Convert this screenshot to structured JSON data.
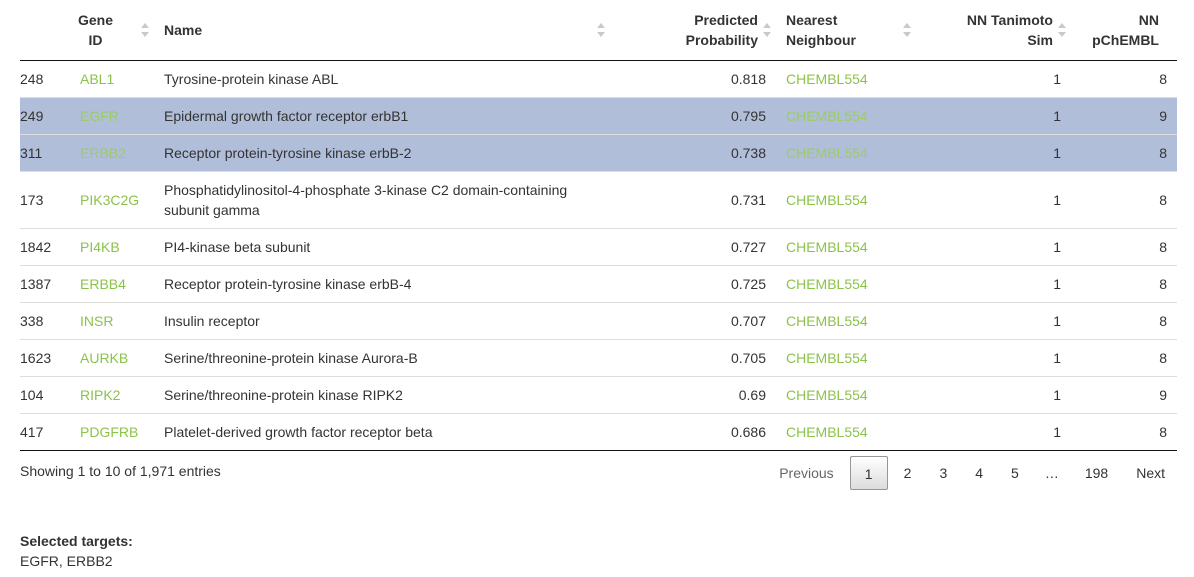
{
  "table": {
    "headers": {
      "index": "",
      "gene_id": [
        "Gene",
        "ID"
      ],
      "name": "Name",
      "predicted_probability": [
        "Predicted",
        "Probability"
      ],
      "nearest_neighbour": [
        "Nearest",
        "Neighbour"
      ],
      "nn_tanimoto_sim": [
        "NN Tanimoto",
        "Sim"
      ],
      "nn_pchembl": [
        "NN",
        "pChEMBL"
      ]
    },
    "rows": [
      {
        "index": "248",
        "gene_id": "ABL1",
        "name": "Tyrosine-protein kinase ABL",
        "prob": "0.818",
        "nn": "CHEMBL554",
        "sim": "1",
        "pchembl": "8",
        "selected": false
      },
      {
        "index": "249",
        "gene_id": "EGFR",
        "name": "Epidermal growth factor receptor erbB1",
        "prob": "0.795",
        "nn": "CHEMBL554",
        "sim": "1",
        "pchembl": "9",
        "selected": true
      },
      {
        "index": "311",
        "gene_id": "ERBB2",
        "name": "Receptor protein-tyrosine kinase erbB-2",
        "prob": "0.738",
        "nn": "CHEMBL554",
        "sim": "1",
        "pchembl": "8",
        "selected": true
      },
      {
        "index": "173",
        "gene_id": "PIK3C2G",
        "name": "Phosphatidylinositol-4-phosphate 3-kinase C2 domain-containing subunit gamma",
        "prob": "0.731",
        "nn": "CHEMBL554",
        "sim": "1",
        "pchembl": "8",
        "selected": false
      },
      {
        "index": "1842",
        "gene_id": "PI4KB",
        "name": "PI4-kinase beta subunit",
        "prob": "0.727",
        "nn": "CHEMBL554",
        "sim": "1",
        "pchembl": "8",
        "selected": false
      },
      {
        "index": "1387",
        "gene_id": "ERBB4",
        "name": "Receptor protein-tyrosine kinase erbB-4",
        "prob": "0.725",
        "nn": "CHEMBL554",
        "sim": "1",
        "pchembl": "8",
        "selected": false
      },
      {
        "index": "338",
        "gene_id": "INSR",
        "name": "Insulin receptor",
        "prob": "0.707",
        "nn": "CHEMBL554",
        "sim": "1",
        "pchembl": "8",
        "selected": false
      },
      {
        "index": "1623",
        "gene_id": "AURKB",
        "name": "Serine/threonine-protein kinase Aurora-B",
        "prob": "0.705",
        "nn": "CHEMBL554",
        "sim": "1",
        "pchembl": "8",
        "selected": false
      },
      {
        "index": "104",
        "gene_id": "RIPK2",
        "name": "Serine/threonine-protein kinase RIPK2",
        "prob": "0.69",
        "nn": "CHEMBL554",
        "sim": "1",
        "pchembl": "9",
        "selected": false
      },
      {
        "index": "417",
        "gene_id": "PDGFRB",
        "name": "Platelet-derived growth factor receptor beta",
        "prob": "0.686",
        "nn": "CHEMBL554",
        "sim": "1",
        "pchembl": "8",
        "selected": false
      }
    ]
  },
  "info": "Showing 1 to 10 of 1,971 entries",
  "pagination": {
    "previous": "Previous",
    "pages": [
      "1",
      "2",
      "3",
      "4",
      "5",
      "…",
      "198"
    ],
    "current": "1",
    "next": "Next"
  },
  "selected_targets": {
    "title": "Selected targets:",
    "value": "EGFR, ERBB2"
  },
  "colors": {
    "link": "#8bc34a",
    "selected_row": "#b0bed9"
  }
}
